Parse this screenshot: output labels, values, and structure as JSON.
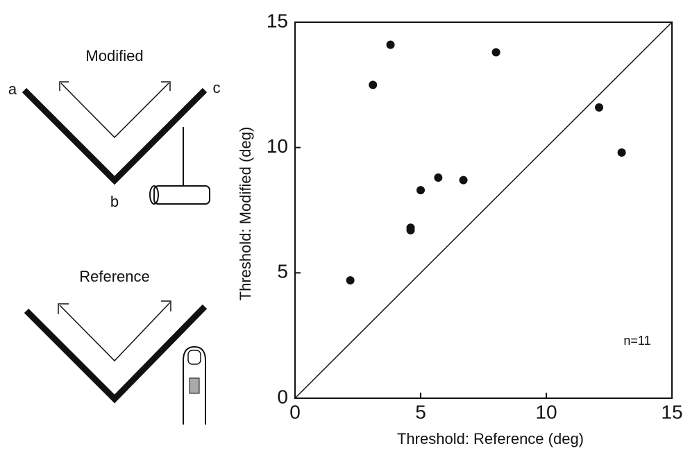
{
  "diagram": {
    "top_label": "Modified",
    "corner_a": "a",
    "corner_b": "b",
    "corner_c": "c",
    "bottom_label": "Reference"
  },
  "chart_data": {
    "type": "scatter",
    "xlabel": "Threshold: Reference (deg)",
    "ylabel": "Threshold: Modified (deg)",
    "annotation": "n=11",
    "x": [
      2.2,
      3.1,
      3.8,
      8.0,
      12.1,
      13.0,
      5.0,
      5.7,
      6.7,
      4.6,
      4.6
    ],
    "values": [
      4.7,
      12.5,
      14.1,
      13.8,
      11.6,
      9.8,
      8.3,
      8.8,
      8.7,
      6.8,
      6.7
    ],
    "color": "#111111",
    "xlim": [
      0,
      15
    ],
    "ylim": [
      0,
      15
    ],
    "xticks": [
      0,
      5,
      10,
      15
    ],
    "yticks": [
      0,
      5,
      10,
      15
    ]
  }
}
